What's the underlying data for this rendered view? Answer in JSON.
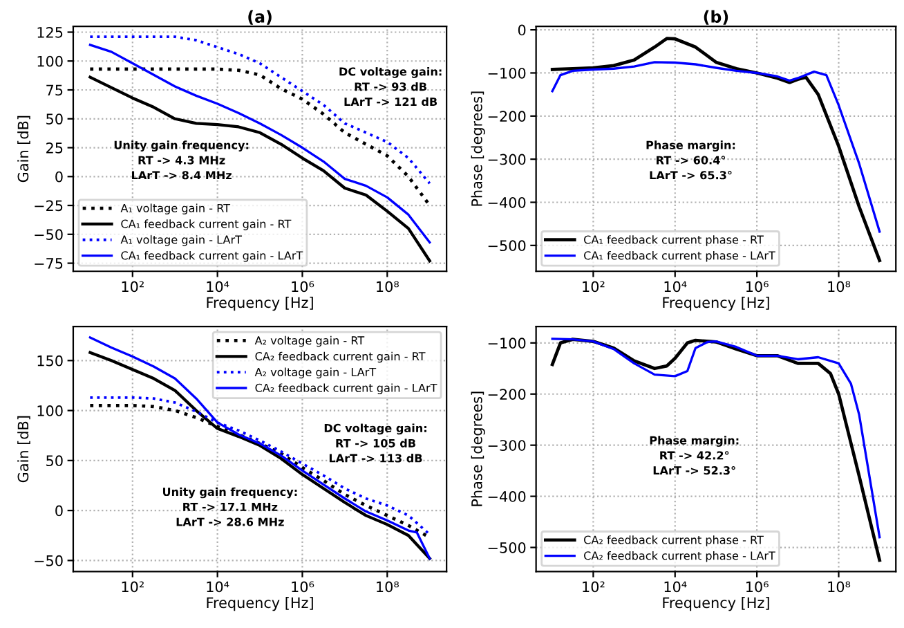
{
  "chart_data": [
    {
      "type": "line",
      "title": "(a)",
      "xlabel": "Frequency [Hz]",
      "ylabel": "Gain [dB]",
      "log": "x",
      "grid": true,
      "legend": "bottom left",
      "xlim": [
        4,
        2500000000
      ],
      "xticks": [
        {
          "value": 100,
          "label": "10²"
        },
        {
          "value": 10000,
          "label": "10⁴"
        },
        {
          "value": 1000000,
          "label": "10⁶"
        },
        {
          "value": 100000000,
          "label": "10⁸"
        }
      ],
      "ylim": [
        -82,
        130
      ],
      "yticks": [
        -75,
        -50,
        -25,
        0,
        25,
        50,
        75,
        100,
        125
      ],
      "annotations": [
        "DC voltage gain:\nRT -> 93 dB\nLArT -> 121 dB",
        "Unity gain frequency:\nRT -> 4.3 MHz\nLArT -> 8.4 MHz"
      ],
      "series": [
        {
          "name": "A₁ voltage gain - RT",
          "color": "#000000",
          "line_style": "dotted",
          "x": [
            10,
            31.6,
            100,
            316,
            1000,
            3160,
            10000,
            31600,
            100000,
            316000,
            1000000,
            3160000,
            10000000,
            31600000,
            100000000,
            316000000,
            1000000000
          ],
          "values": [
            93,
            93,
            93,
            93,
            93,
            93,
            93,
            92,
            88,
            76,
            67,
            54,
            38,
            28,
            18,
            0,
            -25
          ]
        },
        {
          "name": "CA₁ feedback current gain - RT",
          "color": "#000000",
          "line_style": "solid",
          "x": [
            10,
            31.6,
            100,
            316,
            1000,
            3160,
            10000,
            31600,
            100000,
            316000,
            1000000,
            3160000,
            10000000,
            31600000,
            100000000,
            316000000,
            1000000000
          ],
          "values": [
            86,
            77,
            68,
            60,
            50,
            46,
            45,
            43,
            38,
            28,
            16,
            5,
            -10,
            -16,
            -30,
            -45,
            -73
          ]
        },
        {
          "name": "A₁ voltage gain - LArT",
          "color": "#0000ff",
          "line_style": "dotted",
          "x": [
            10,
            31.6,
            100,
            316,
            1000,
            3160,
            10000,
            31600,
            100000,
            316000,
            1000000,
            3160000,
            10000000,
            31600000,
            100000000,
            316000000,
            1000000000
          ],
          "values": [
            121,
            121,
            121,
            121,
            121,
            118,
            112,
            106,
            98,
            86,
            74,
            62,
            46,
            38,
            30,
            16,
            -6
          ]
        },
        {
          "name": "CA₁ feedback current gain - LArT",
          "color": "#0000ff",
          "line_style": "solid",
          "x": [
            10,
            31.6,
            100,
            316,
            1000,
            3160,
            10000,
            31600,
            100000,
            316000,
            1000000,
            3160000,
            10000000,
            31600000,
            100000000,
            316000000,
            1000000000
          ],
          "values": [
            114,
            108,
            98,
            88,
            78,
            70,
            63,
            55,
            46,
            36,
            25,
            13,
            -2,
            -8,
            -18,
            -33,
            -57
          ]
        }
      ]
    },
    {
      "type": "line",
      "title": "(b)",
      "xlabel": "Frequency [Hz]",
      "ylabel": "Phase [degrees]",
      "log": "x",
      "grid": true,
      "legend": "bottom left",
      "xlim": [
        4,
        2500000000
      ],
      "xticks": [
        {
          "value": 100,
          "label": "10²"
        },
        {
          "value": 10000,
          "label": "10⁴"
        },
        {
          "value": 1000000,
          "label": "10⁶"
        },
        {
          "value": 100000000,
          "label": "10⁸"
        }
      ],
      "ylim": [
        -560,
        8
      ],
      "yticks": [
        -500,
        -400,
        -300,
        -200,
        -100,
        0
      ],
      "annotations": [
        "Phase margin:\nRT -> 60.4°\nLArT -> 65.3°"
      ],
      "series": [
        {
          "name": "CA₁ feedback current phase - RT",
          "color": "#000000",
          "line_style": "solid",
          "x": [
            10,
            31.6,
            100,
            316,
            1000,
            3160,
            6300,
            10000,
            31600,
            100000,
            316000,
            1000000,
            3160000,
            6300000,
            10000000,
            15800000,
            31600000,
            100000000,
            316000000,
            1000000000
          ],
          "values": [
            -92,
            -90,
            -88,
            -83,
            -70,
            -40,
            -20,
            -21,
            -40,
            -75,
            -90,
            -100,
            -112,
            -122,
            -115,
            -110,
            -150,
            -270,
            -410,
            -535
          ]
        },
        {
          "name": "CA₁ feedback current phase - LArT",
          "color": "#0000ff",
          "line_style": "solid",
          "x": [
            10,
            15.8,
            31.6,
            100,
            316,
            1000,
            3160,
            10000,
            31600,
            100000,
            316000,
            1000000,
            3160000,
            6300000,
            10000000,
            25000000,
            50000000,
            100000000,
            316000000,
            1000000000
          ],
          "values": [
            -142,
            -105,
            -95,
            -92,
            -90,
            -85,
            -75,
            -76,
            -80,
            -88,
            -95,
            -100,
            -108,
            -118,
            -112,
            -97,
            -105,
            -175,
            -310,
            -468
          ]
        }
      ]
    },
    {
      "type": "line",
      "xlabel": "Frequency [Hz]",
      "ylabel": "Gain [dB]",
      "log": "x",
      "grid": true,
      "legend": "top right",
      "xlim": [
        4,
        2500000000
      ],
      "xticks": [
        {
          "value": 100,
          "label": "10²"
        },
        {
          "value": 10000,
          "label": "10⁴"
        },
        {
          "value": 1000000,
          "label": "10⁶"
        },
        {
          "value": 100000000,
          "label": "10⁸"
        }
      ],
      "ylim": [
        -61,
        184
      ],
      "yticks": [
        -50,
        0,
        50,
        100,
        150
      ],
      "annotations": [
        "DC voltage gain:\nRT -> 105 dB\nLArT -> 113 dB",
        "Unity gain frequency:\nRT -> 17.1 MHz\nLArT -> 28.6 MHz"
      ],
      "series": [
        {
          "name": "A₂ voltage gain - RT",
          "color": "#000000",
          "line_style": "dotted",
          "x": [
            10,
            100,
            316,
            1000,
            3160,
            10000,
            31600,
            100000,
            316000,
            1000000,
            3160000,
            10000000,
            31600000,
            100000000,
            316000000,
            1000000000
          ],
          "values": [
            105,
            105,
            104,
            100,
            93,
            84,
            76,
            67,
            57,
            43,
            30,
            16,
            5,
            -5,
            -15,
            -27
          ]
        },
        {
          "name": "CA₂ feedback current gain - RT",
          "color": "#000000",
          "line_style": "solid",
          "x": [
            10,
            31.6,
            100,
            316,
            1000,
            3160,
            10000,
            31600,
            100000,
            316000,
            1000000,
            3160000,
            10000000,
            31600000,
            100000000,
            316000000,
            1000000000
          ],
          "values": [
            158,
            150,
            141,
            132,
            120,
            100,
            82,
            74,
            65,
            52,
            36,
            22,
            8,
            -5,
            -14,
            -25,
            -48
          ]
        },
        {
          "name": "A₂ voltage gain - LArT",
          "color": "#0000ff",
          "line_style": "dotted",
          "x": [
            10,
            100,
            316,
            1000,
            3160,
            10000,
            31600,
            100000,
            316000,
            1000000,
            3160000,
            10000000,
            31600000,
            100000000,
            316000000,
            1000000000
          ],
          "values": [
            113,
            113,
            112,
            108,
            99,
            88,
            80,
            70,
            59,
            47,
            35,
            22,
            12,
            5,
            -5,
            -24
          ]
        },
        {
          "name": "CA₂ feedback current gain - LArT",
          "color": "#0000ff",
          "line_style": "solid",
          "x": [
            10,
            31.6,
            100,
            316,
            1000,
            3160,
            10000,
            31600,
            100000,
            316000,
            1000000,
            3160000,
            10000000,
            31600000,
            100000000,
            316000000,
            500000000,
            1000000000
          ],
          "values": [
            173,
            163,
            154,
            144,
            132,
            112,
            88,
            76,
            67,
            55,
            40,
            26,
            12,
            -1,
            -10,
            -20,
            -22,
            -48
          ]
        }
      ]
    },
    {
      "type": "line",
      "xlabel": "Frequency [Hz]",
      "ylabel": "Phase [degrees]",
      "log": "x",
      "grid": true,
      "legend": "bottom left",
      "xlim": [
        4,
        2500000000
      ],
      "xticks": [
        {
          "value": 100,
          "label": "10²"
        },
        {
          "value": 10000,
          "label": "10⁴"
        },
        {
          "value": 1000000,
          "label": "10⁶"
        },
        {
          "value": 100000000,
          "label": "10⁸"
        }
      ],
      "ylim": [
        -547,
        -68
      ],
      "yticks": [
        -500,
        -400,
        -300,
        -200,
        -100
      ],
      "annotations": [
        "Phase margin:\nRT -> 42.2°\nLArT -> 52.3°"
      ],
      "series": [
        {
          "name": "CA₂ feedback current phase - RT",
          "color": "#000000",
          "line_style": "solid",
          "x": [
            10,
            15.8,
            31.6,
            100,
            316,
            1000,
            3160,
            6300,
            10000,
            20000,
            31600,
            100000,
            316000,
            1000000,
            3160000,
            10000000,
            31600000,
            63000000,
            100000000,
            316000000,
            1000000000
          ],
          "values": [
            -142,
            -100,
            -93,
            -97,
            -110,
            -135,
            -150,
            -145,
            -130,
            -100,
            -95,
            -98,
            -112,
            -125,
            -125,
            -140,
            -140,
            -160,
            -200,
            -360,
            -525
          ]
        },
        {
          "name": "CA₂ feedback current phase - LArT",
          "color": "#0000ff",
          "line_style": "solid",
          "x": [
            10,
            31.6,
            100,
            316,
            1000,
            3160,
            10000,
            20000,
            31600,
            63000,
            100000,
            316000,
            1000000,
            3160000,
            10000000,
            31600000,
            100000000,
            200000000,
            316000000,
            1000000000
          ],
          "values": [
            -92,
            -93,
            -97,
            -112,
            -140,
            -162,
            -165,
            -155,
            -110,
            -98,
            -97,
            -108,
            -125,
            -125,
            -132,
            -128,
            -140,
            -180,
            -240,
            -480
          ]
        }
      ]
    }
  ]
}
